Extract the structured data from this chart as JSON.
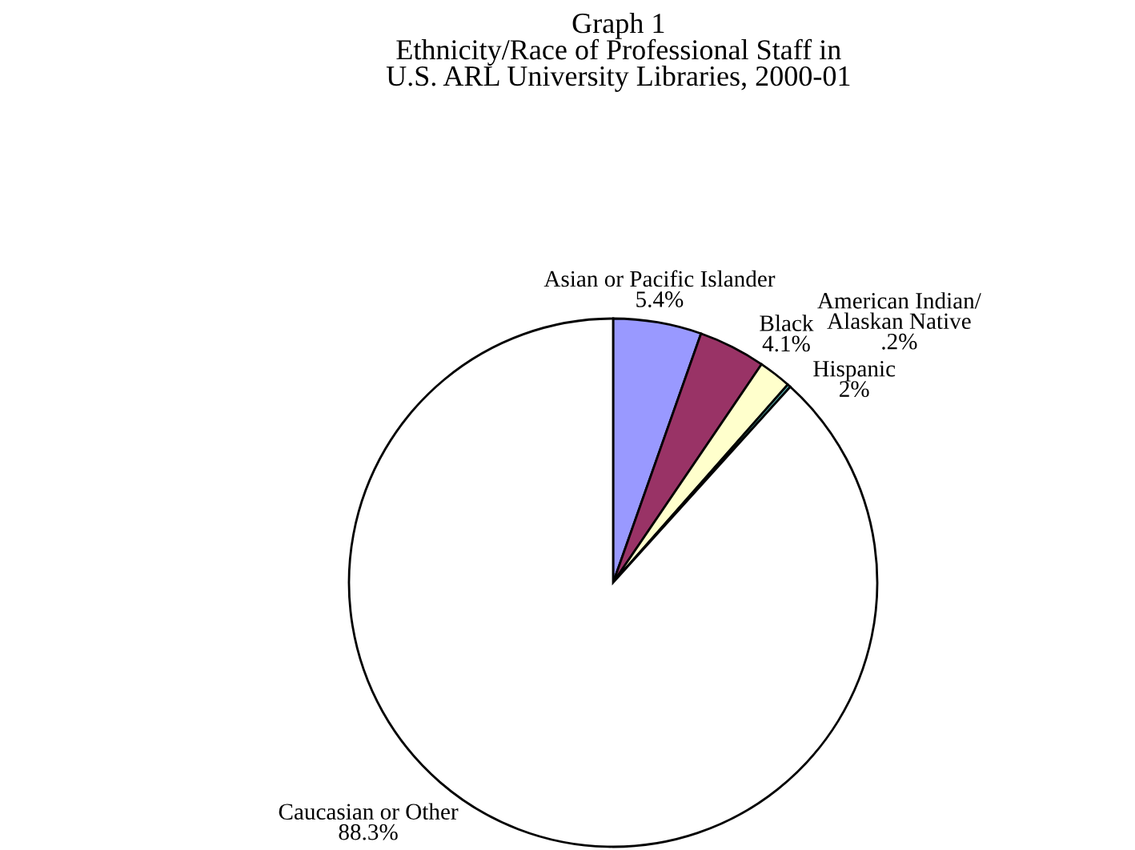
{
  "chart_data": {
    "type": "pie",
    "title": "Graph 1\nEthnicity/Race of Professional Staff in\nU.S. ARL University Libraries, 2000-01",
    "categories": [
      "Asian or Pacific Islander",
      "Black",
      "Hispanic",
      "American Indian/\nAlaskan Native",
      "Caucasian or Other"
    ],
    "values": [
      5.4,
      4.1,
      2,
      0.2,
      88.3
    ],
    "value_labels": [
      "5.4%",
      "4.1%",
      "2%",
      ".2%",
      "88.3%"
    ],
    "colors": [
      "#9999ff",
      "#993366",
      "#ffffcc",
      "#66cccc",
      "#ffffff"
    ]
  }
}
